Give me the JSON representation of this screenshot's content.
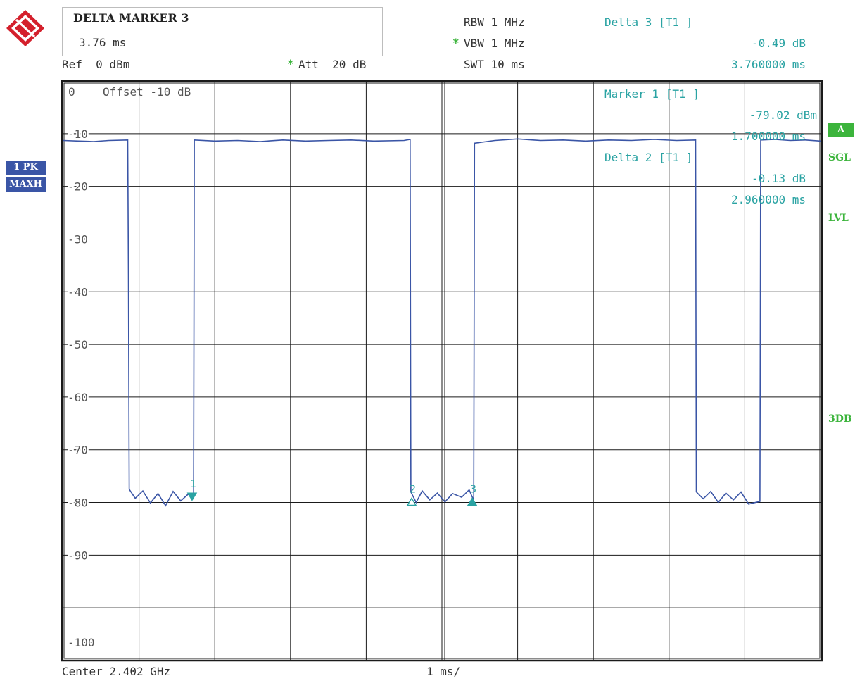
{
  "header": {
    "marker_title": "DELTA MARKER 3",
    "marker_value": "3.76 ms",
    "ref": "Ref  0 dBm",
    "att_star": "*",
    "att": "Att  20 dB",
    "rbw": "RBW 1 MHz",
    "vbw_star": "*",
    "vbw": "VBW 1 MHz",
    "swt": "SWT 10 ms",
    "delta3_title": "Delta 3 [T1 ]",
    "delta3_level": "-0.49 dB",
    "delta3_time": "3.760000 ms"
  },
  "left_badges": {
    "trace": "1 PK",
    "mode": "MAXH"
  },
  "right_labels": {
    "a": "A",
    "sgl": "SGL",
    "lvl": "LVL",
    "db3": "3DB"
  },
  "footer": {
    "center": "Center 2.402 GHz",
    "span": "1 ms/"
  },
  "colors": {
    "trace": "#3a55a6",
    "marker": "#2aa3a3",
    "status_green": "#3cb43c",
    "grid": "#1a1a1a"
  },
  "chart_data": {
    "type": "line",
    "xlabel": "",
    "ylabel": "",
    "title": "",
    "x_unit": "ms",
    "xlim": [
      0,
      10
    ],
    "ylim": [
      -110,
      0
    ],
    "y_ticks": [
      {
        "value": -10,
        "label": "-10"
      },
      {
        "value": -20,
        "label": "-20"
      },
      {
        "value": -30,
        "label": "-30"
      },
      {
        "value": -40,
        "label": "-40"
      },
      {
        "value": -50,
        "label": "-50"
      },
      {
        "value": -60,
        "label": "-60"
      },
      {
        "value": -70,
        "label": "-70"
      },
      {
        "value": -80,
        "label": "-80"
      },
      {
        "value": -90,
        "label": "-90"
      },
      {
        "value": -100,
        "label": "-100"
      }
    ],
    "top_label_value": "0",
    "offset_label": "Offset -10 dB",
    "grid": true,
    "series": [
      {
        "points": [
          [
            0,
            -11.3
          ],
          [
            0.2,
            -11.4
          ],
          [
            0.4,
            -11.5
          ],
          [
            0.6,
            -11.3
          ],
          [
            0.85,
            -11.2
          ],
          [
            0.86,
            -37
          ],
          [
            0.87,
            -77.5
          ],
          [
            0.95,
            -79.2
          ],
          [
            1.05,
            -77.8
          ],
          [
            1.15,
            -80.1
          ],
          [
            1.25,
            -78.3
          ],
          [
            1.35,
            -80.6
          ],
          [
            1.45,
            -77.9
          ],
          [
            1.55,
            -79.7
          ],
          [
            1.65,
            -78.4
          ],
          [
            1.72,
            -79.3
          ],
          [
            1.73,
            -11.2
          ],
          [
            2.0,
            -11.4
          ],
          [
            2.3,
            -11.3
          ],
          [
            2.6,
            -11.5
          ],
          [
            2.9,
            -11.2
          ],
          [
            3.2,
            -11.4
          ],
          [
            3.5,
            -11.3
          ],
          [
            3.8,
            -11.2
          ],
          [
            4.1,
            -11.4
          ],
          [
            4.5,
            -11.3
          ],
          [
            4.58,
            -11.1
          ],
          [
            4.59,
            -78.0
          ],
          [
            4.66,
            -80.0
          ],
          [
            4.74,
            -77.8
          ],
          [
            4.84,
            -79.5
          ],
          [
            4.94,
            -78.2
          ],
          [
            5.04,
            -79.9
          ],
          [
            5.14,
            -78.3
          ],
          [
            5.26,
            -79.0
          ],
          [
            5.36,
            -77.6
          ],
          [
            5.42,
            -79.6
          ],
          [
            5.43,
            -11.8
          ],
          [
            5.7,
            -11.3
          ],
          [
            6.0,
            -11.0
          ],
          [
            6.3,
            -11.3
          ],
          [
            6.6,
            -11.2
          ],
          [
            6.9,
            -11.4
          ],
          [
            7.2,
            -11.2
          ],
          [
            7.5,
            -11.3
          ],
          [
            7.8,
            -11.1
          ],
          [
            8.1,
            -11.3
          ],
          [
            8.35,
            -11.2
          ],
          [
            8.36,
            -78.0
          ],
          [
            8.45,
            -79.3
          ],
          [
            8.55,
            -77.9
          ],
          [
            8.65,
            -80.0
          ],
          [
            8.75,
            -78.2
          ],
          [
            8.85,
            -79.5
          ],
          [
            8.95,
            -78.0
          ],
          [
            9.05,
            -80.3
          ],
          [
            9.2,
            -79.8
          ],
          [
            9.21,
            -11.2
          ],
          [
            9.4,
            -11.1
          ],
          [
            9.6,
            -11.3
          ],
          [
            9.8,
            -11.2
          ],
          [
            10.0,
            -11.4
          ]
        ]
      }
    ],
    "markers": [
      {
        "label": "1",
        "x": 1.7,
        "y": -79.02,
        "style": "filled-down"
      },
      {
        "label": "2",
        "x": 4.6,
        "y": -80.0,
        "style": "open-up"
      },
      {
        "label": "3",
        "x": 5.4,
        "y": -80.0,
        "style": "filled-up"
      }
    ],
    "marker_info": {
      "m1_title": "Marker 1 [T1 ]",
      "m1_level": "-79.02 dBm",
      "m1_time": "1.700000 ms",
      "d2_title": "Delta 2 [T1 ]",
      "d2_level": "-0.13 dB",
      "d2_time": "2.960000 ms"
    }
  }
}
